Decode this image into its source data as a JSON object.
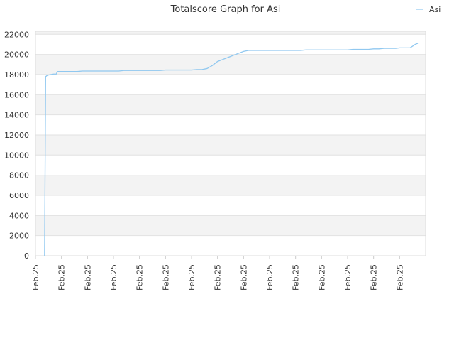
{
  "chart_data": {
    "type": "line",
    "title": "Totalscore Graph for Asi",
    "xlabel": "",
    "ylabel": "",
    "ylim": [
      0,
      22000
    ],
    "yticks": [
      0,
      2000,
      4000,
      6000,
      8000,
      10000,
      12000,
      14000,
      16000,
      18000,
      20000,
      22000
    ],
    "xtick_labels": [
      "Feb.25",
      "Feb.25",
      "Feb.25",
      "Feb.25",
      "Feb.25",
      "Feb.25",
      "Feb.25",
      "Feb.25",
      "Feb.25",
      "Feb.25",
      "Feb.25",
      "Feb.25",
      "Feb.25",
      "Feb.25",
      "Feb.25"
    ],
    "grid": "alternating horizontal bands",
    "legend_position": "top-right",
    "series": [
      {
        "name": "Asi",
        "color": "#90c8f0",
        "x": [
          0.35,
          0.37,
          0.39,
          0.42,
          0.44,
          0.5,
          0.6,
          0.7,
          0.8,
          0.84,
          0.9,
          1.0,
          1.2,
          1.4,
          1.6,
          1.8,
          2.0,
          2.2,
          2.4,
          2.6,
          2.8,
          3.0,
          3.2,
          3.4,
          3.6,
          3.8,
          4.0,
          4.2,
          4.4,
          4.6,
          4.8,
          5.0,
          5.2,
          5.4,
          5.6,
          5.8,
          6.0,
          6.2,
          6.4,
          6.6,
          6.8,
          7.0,
          7.1,
          7.2,
          7.4,
          7.6,
          7.8,
          8.0,
          8.2,
          8.4,
          8.6,
          8.8,
          9.0,
          9.2,
          9.4,
          9.6,
          9.8,
          10.0,
          10.2,
          10.4,
          10.6,
          10.8,
          11.0,
          11.2,
          11.4,
          11.6,
          11.8,
          12.0,
          12.2,
          12.4,
          12.6,
          12.8,
          13.0,
          13.2,
          13.4,
          13.6,
          13.8,
          13.85,
          14.0,
          14.2,
          14.3,
          14.4,
          14.55,
          14.6,
          14.7
        ],
        "values": [
          0,
          8800,
          17800,
          17850,
          17900,
          17950,
          18000,
          18050,
          18050,
          18300,
          18300,
          18300,
          18300,
          18300,
          18300,
          18350,
          18350,
          18350,
          18350,
          18350,
          18350,
          18350,
          18350,
          18400,
          18400,
          18400,
          18400,
          18400,
          18400,
          18400,
          18400,
          18450,
          18450,
          18450,
          18450,
          18450,
          18450,
          18500,
          18500,
          18600,
          18900,
          19300,
          19400,
          19500,
          19700,
          19900,
          20100,
          20300,
          20400,
          20400,
          20400,
          20400,
          20400,
          20400,
          20400,
          20400,
          20400,
          20400,
          20400,
          20450,
          20450,
          20450,
          20450,
          20450,
          20450,
          20450,
          20450,
          20450,
          20500,
          20500,
          20500,
          20500,
          20550,
          20550,
          20600,
          20600,
          20600,
          20600,
          20650,
          20650,
          20650,
          20650,
          20900,
          21000,
          21100
        ]
      }
    ]
  }
}
